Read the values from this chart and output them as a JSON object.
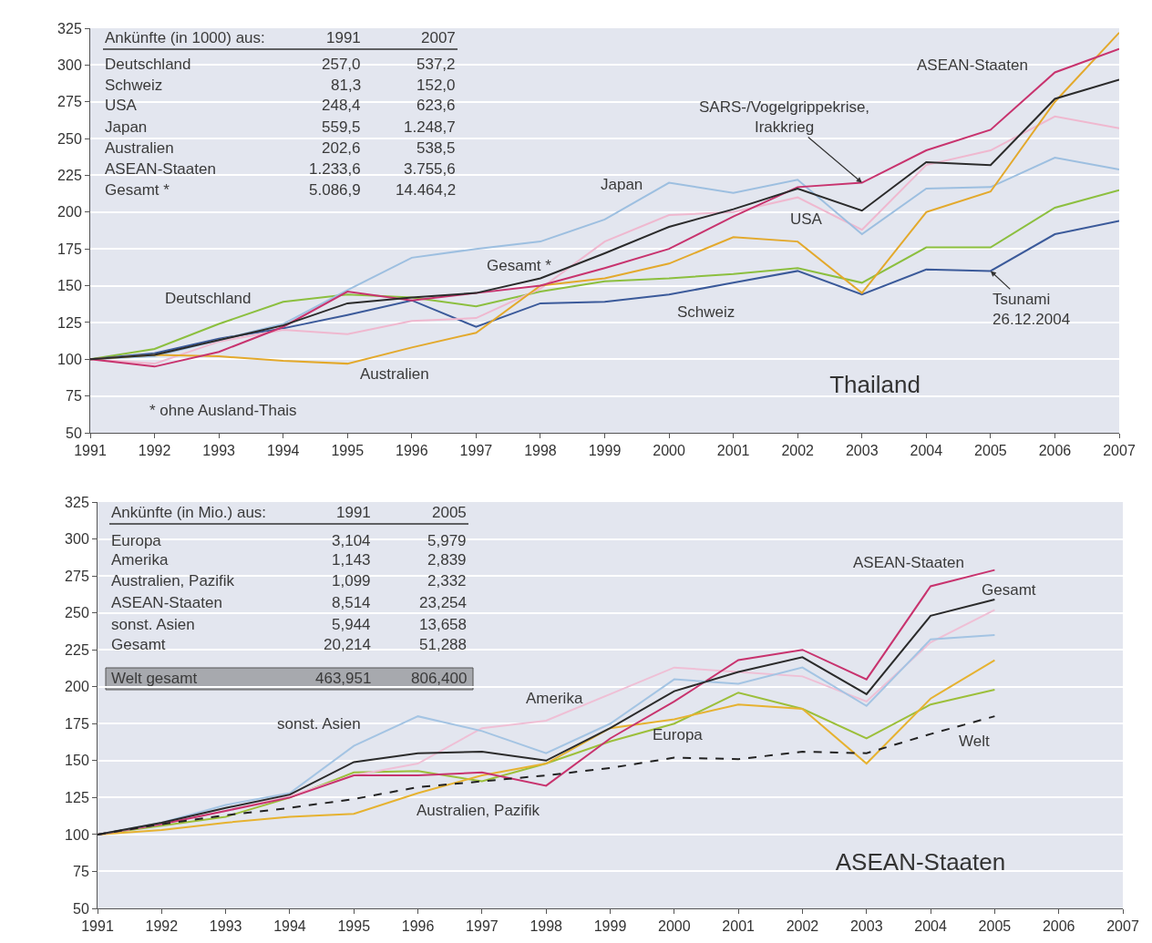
{
  "chart_data": [
    {
      "type": "line",
      "title": "Thailand",
      "x": [
        1991,
        1992,
        1993,
        1994,
        1995,
        1996,
        1997,
        1998,
        1999,
        2000,
        2001,
        2002,
        2003,
        2004,
        2005,
        2006,
        2007
      ],
      "xlim": [
        1991,
        2007
      ],
      "xticks": [
        1991,
        1992,
        1993,
        1994,
        1995,
        1996,
        1997,
        1998,
        1999,
        2000,
        2001,
        2002,
        2003,
        2004,
        2005,
        2006,
        2007
      ],
      "ylim": [
        50,
        325
      ],
      "yticks": [
        50,
        75,
        100,
        125,
        150,
        175,
        200,
        225,
        250,
        275,
        300,
        325
      ],
      "grid": "y",
      "legend": false,
      "line_style": "solid",
      "series": [
        {
          "name": "Deutschland",
          "color": "#8cbf3f",
          "values": [
            100,
            107,
            124,
            139,
            144,
            142,
            136,
            146,
            153,
            155,
            158,
            162,
            152,
            176,
            176,
            203,
            215
          ]
        },
        {
          "name": "Schweiz",
          "color": "#3b5a9a",
          "values": [
            100,
            104,
            114,
            121,
            130,
            140,
            122,
            138,
            139,
            144,
            152,
            160,
            144,
            161,
            160,
            185,
            194
          ]
        },
        {
          "name": "USA",
          "color": "#efb8cf",
          "values": [
            100,
            97,
            112,
            120,
            117,
            126,
            128,
            148,
            180,
            198,
            200,
            210,
            188,
            232,
            242,
            265,
            257
          ]
        },
        {
          "name": "Japan",
          "color": "#9dbfe0",
          "values": [
            100,
            102,
            113,
            124,
            147,
            169,
            175,
            180,
            195,
            220,
            213,
            222,
            185,
            216,
            217,
            237,
            229
          ]
        },
        {
          "name": "Australien",
          "color": "#e3a92c",
          "values": [
            100,
            103,
            102,
            99,
            97,
            108,
            118,
            150,
            155,
            165,
            183,
            180,
            145,
            200,
            214,
            275,
            322
          ]
        },
        {
          "name": "ASEAN-Staaten",
          "color": "#c8336e",
          "values": [
            100,
            95,
            105,
            122,
            146,
            140,
            145,
            150,
            162,
            175,
            197,
            217,
            220,
            242,
            256,
            295,
            311
          ]
        },
        {
          "name": "Gesamt *",
          "color": "#2b2b2b",
          "values": [
            100,
            103,
            113,
            123,
            138,
            142,
            145,
            155,
            172,
            190,
            202,
            216,
            201,
            234,
            232,
            277,
            290
          ]
        }
      ],
      "annotations": [
        "Ankünfte (in 1000) aus:",
        "1991",
        "2007",
        "Deutschland",
        "257,0",
        "537,2",
        "Schweiz",
        "81,3",
        "152,0",
        "USA",
        "248,4",
        "623,6",
        "Japan",
        "559,5",
        "1.248,7",
        "Australien",
        "202,6",
        "538,5",
        "ASEAN-Staaten",
        "1.233,6",
        "3.755,6",
        "Gesamt *",
        "5.086,9",
        "14.464,2",
        "* ohne Ausland-Thais",
        {
          "text": "SARS-/Vogelgrippekrise,\nIrakkrieg",
          "x": 2003,
          "y": 220
        },
        {
          "text": "Tsunami\n26.12.2004",
          "x": 2005,
          "y": 160
        }
      ]
    },
    {
      "type": "line",
      "title": "ASEAN-Staaten",
      "x": [
        1991,
        1992,
        1993,
        1994,
        1995,
        1996,
        1997,
        1998,
        1999,
        2000,
        2001,
        2002,
        2003,
        2004,
        2005
      ],
      "xlim": [
        1991,
        2007
      ],
      "xticks": [
        1991,
        1992,
        1993,
        1994,
        1995,
        1996,
        1997,
        1998,
        1999,
        2000,
        2001,
        2002,
        2003,
        2004,
        2005,
        2006,
        2007
      ],
      "ylim": [
        50,
        325
      ],
      "yticks": [
        50,
        75,
        100,
        125,
        150,
        175,
        200,
        225,
        250,
        275,
        300,
        325
      ],
      "grid": "y",
      "legend": false,
      "line_style": "solid",
      "series": [
        {
          "name": "Europa",
          "color": "#9cbf3a",
          "values": [
            100,
            106,
            112,
            125,
            142,
            143,
            136,
            148,
            163,
            175,
            196,
            185,
            165,
            188,
            198
          ]
        },
        {
          "name": "Amerika",
          "color": "#efbfd5",
          "values": [
            100,
            107,
            116,
            126,
            140,
            148,
            172,
            177,
            195,
            213,
            210,
            207,
            190,
            230,
            252
          ]
        },
        {
          "name": "Australien, Pazifik",
          "color": "#e6b230",
          "values": [
            100,
            103,
            108,
            112,
            114,
            128,
            140,
            148,
            172,
            178,
            188,
            185,
            148,
            192,
            218
          ]
        },
        {
          "name": "ASEAN-Staaten",
          "color": "#c8336e",
          "values": [
            100,
            107,
            116,
            125,
            140,
            140,
            142,
            133,
            165,
            190,
            218,
            225,
            205,
            268,
            279
          ]
        },
        {
          "name": "sonst. Asien",
          "color": "#a4c4e3",
          "values": [
            100,
            108,
            120,
            128,
            160,
            180,
            170,
            155,
            175,
            205,
            202,
            213,
            187,
            232,
            235
          ]
        },
        {
          "name": "Gesamt",
          "color": "#2b2b2b",
          "values": [
            100,
            108,
            118,
            127,
            149,
            155,
            156,
            150,
            172,
            197,
            210,
            220,
            195,
            248,
            259
          ]
        },
        {
          "name": "Welt",
          "color": "#222222",
          "line_style": "dashed",
          "values": [
            100,
            107,
            113,
            118,
            124,
            132,
            136,
            140,
            145,
            152,
            151,
            156,
            155,
            168,
            180
          ]
        }
      ],
      "annotations": [
        "Ankünfte (in Mio.) aus:",
        "1991",
        "2005",
        "Europa",
        "3,104",
        "5,979",
        "Amerika",
        "1,143",
        "2,839",
        "Australien, Pazifik",
        "1,099",
        "2,332",
        "ASEAN-Staaten",
        "8,514",
        "23,254",
        "sonst. Asien",
        "5,944",
        "13,658",
        "Gesamt",
        "20,214",
        "51,288",
        "Welt gesamt",
        "463,951",
        "806,400"
      ]
    }
  ]
}
